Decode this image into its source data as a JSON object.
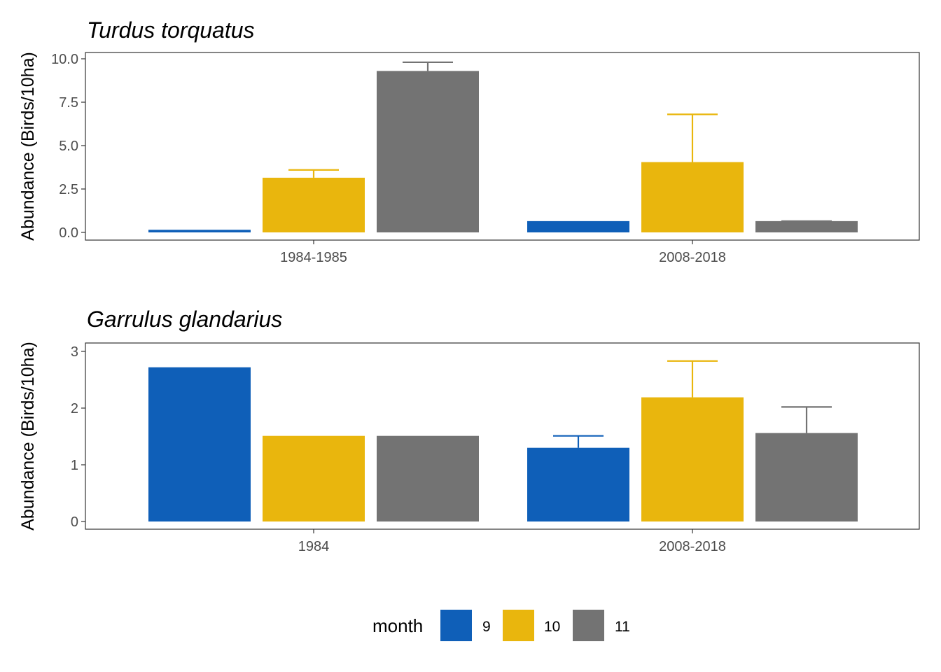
{
  "chart_data": [
    {
      "type": "bar",
      "title": "Turdus torquatus",
      "xlabel": "",
      "ylabel": "Abundance (Birds/10ha)",
      "ylim": [
        0,
        10
      ],
      "yticks": [
        "0.0",
        "2.5",
        "5.0",
        "7.5",
        "10.0"
      ],
      "categories": [
        "1984-1985",
        "2008-2018"
      ],
      "series": [
        {
          "name": "9",
          "values": [
            0.15,
            0.65
          ],
          "error_upper": [
            null,
            null
          ]
        },
        {
          "name": "10",
          "values": [
            3.15,
            4.05
          ],
          "error_upper": [
            3.6,
            6.8
          ]
        },
        {
          "name": "11",
          "values": [
            9.3,
            0.65
          ],
          "error_upper": [
            9.8,
            0.65
          ]
        }
      ],
      "grid": false
    },
    {
      "type": "bar",
      "title": "Garrulus glandarius",
      "xlabel": "",
      "ylabel": "Abundance (Birds/10ha)",
      "ylim": [
        0,
        3
      ],
      "yticks": [
        "0",
        "1",
        "2",
        "3"
      ],
      "categories": [
        "1984",
        "2008-2018"
      ],
      "series": [
        {
          "name": "9",
          "values": [
            2.72,
            1.3
          ],
          "error_upper": [
            null,
            1.51
          ]
        },
        {
          "name": "10",
          "values": [
            1.51,
            2.19
          ],
          "error_upper": [
            null,
            2.83
          ]
        },
        {
          "name": "11",
          "values": [
            1.51,
            1.56
          ],
          "error_upper": [
            null,
            2.02
          ]
        }
      ],
      "grid": false
    }
  ],
  "legend": {
    "title": "month",
    "position": "bottom",
    "items": [
      {
        "label": "9",
        "color": "#0F5FB8"
      },
      {
        "label": "10",
        "color": "#E9B60D"
      },
      {
        "label": "11",
        "color": "#737373"
      }
    ]
  },
  "colors": {
    "series": [
      "#0F5FB8",
      "#E9B60D",
      "#737373"
    ],
    "axis": "#333333",
    "tick_text": "#4d4d4d"
  }
}
